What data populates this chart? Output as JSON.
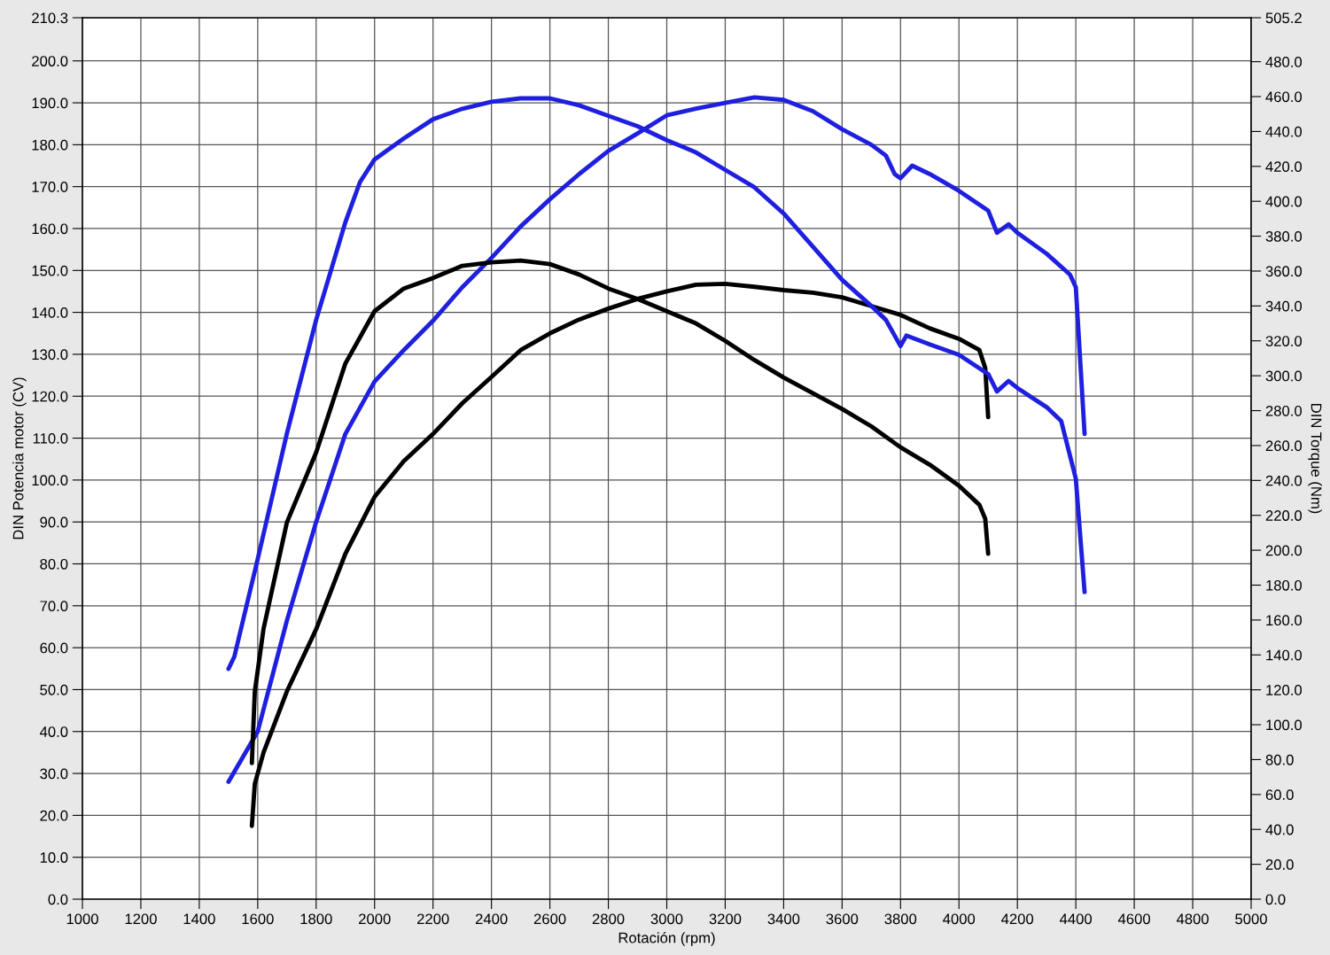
{
  "chart_data": {
    "type": "line",
    "xlabel": "Rotación (rpm)",
    "ylabel": "DIN Potencia motor (CV)",
    "y2label": "DIN Torque (Nm)",
    "xlim": [
      1000,
      5000
    ],
    "xticks": [
      1000,
      1200,
      1400,
      1600,
      1800,
      2000,
      2200,
      2400,
      2600,
      2800,
      3000,
      3200,
      3400,
      3600,
      3800,
      4000,
      4200,
      4400,
      4600,
      4800,
      5000
    ],
    "ylim": [
      0,
      210.3
    ],
    "yticks": [
      {
        "value": 0,
        "label": "0.0"
      },
      {
        "value": 10,
        "label": "10.0"
      },
      {
        "value": 20,
        "label": "20.0"
      },
      {
        "value": 30,
        "label": "30.0"
      },
      {
        "value": 40,
        "label": "40.0"
      },
      {
        "value": 50,
        "label": "50.0"
      },
      {
        "value": 60,
        "label": "60.0"
      },
      {
        "value": 70,
        "label": "70.0"
      },
      {
        "value": 80,
        "label": "80.0"
      },
      {
        "value": 90,
        "label": "90.0"
      },
      {
        "value": 100,
        "label": "100.0"
      },
      {
        "value": 110,
        "label": "110.0"
      },
      {
        "value": 120,
        "label": "120.0"
      },
      {
        "value": 130,
        "label": "130.0"
      },
      {
        "value": 140,
        "label": "140.0"
      },
      {
        "value": 150,
        "label": "150.0"
      },
      {
        "value": 160,
        "label": "160.0"
      },
      {
        "value": 170,
        "label": "170.0"
      },
      {
        "value": 180,
        "label": "180.0"
      },
      {
        "value": 190,
        "label": "190.0"
      },
      {
        "value": 200,
        "label": "200.0"
      },
      210.3
    ],
    "y2lim": [
      0,
      505.2
    ],
    "y2ticks": [
      {
        "value": 0,
        "label": "0.0"
      },
      {
        "value": 20,
        "label": "20.0"
      },
      {
        "value": 40,
        "label": "40.0"
      },
      {
        "value": 60,
        "label": "60.0"
      },
      {
        "value": 80,
        "label": "80.0"
      },
      {
        "value": 100,
        "label": "100.0"
      },
      {
        "value": 120,
        "label": "120.0"
      },
      {
        "value": 140,
        "label": "140.0"
      },
      {
        "value": 160,
        "label": "160.0"
      },
      {
        "value": 180,
        "label": "180.0"
      },
      {
        "value": 200,
        "label": "200.0"
      },
      {
        "value": 220,
        "label": "220.0"
      },
      {
        "value": 240,
        "label": "240.0"
      },
      {
        "value": 260,
        "label": "260.0"
      },
      {
        "value": 280,
        "label": "280.0"
      },
      {
        "value": 300,
        "label": "300.0"
      },
      {
        "value": 320,
        "label": "320.0"
      },
      {
        "value": 340,
        "label": "340.0"
      },
      {
        "value": 360,
        "label": "360.0"
      },
      {
        "value": 380,
        "label": "380.0"
      },
      {
        "value": 400,
        "label": "400.0"
      },
      {
        "value": 420,
        "label": "420.0"
      },
      {
        "value": 440,
        "label": "440.0"
      },
      {
        "value": 460,
        "label": "460.0"
      },
      {
        "value": 480,
        "label": "480.0"
      },
      505.2
    ],
    "grid": true,
    "legend": false,
    "marker": "none",
    "line_style": "solid",
    "series": [
      {
        "color": "#1f1fdf",
        "axis": "y",
        "x": [
          1500,
          1600,
          1700,
          1800,
          1900,
          2000,
          2100,
          2200,
          2300,
          2400,
          2500,
          2600,
          2700,
          2800,
          2900,
          3000,
          3100,
          3200,
          3300,
          3400,
          3500,
          3600,
          3700,
          3750,
          3780,
          3800,
          3840,
          3900,
          4000,
          4100,
          4130,
          4170,
          4200,
          4300,
          4380,
          4400,
          4430
        ],
        "values": [
          28,
          40,
          66.5,
          90,
          111,
          123.5,
          131,
          138,
          146,
          153,
          160.5,
          167,
          173,
          178.5,
          182.7,
          187,
          188.6,
          190,
          191.3,
          190.7,
          188,
          183.7,
          180,
          177.4,
          173,
          172,
          175,
          173,
          169,
          164.3,
          159,
          161,
          159,
          154,
          149,
          146,
          111
        ]
      },
      {
        "color": "#1f1fdf",
        "axis": "y2",
        "x": [
          1500,
          1520,
          1600,
          1700,
          1800,
          1900,
          1950,
          2000,
          2100,
          2200,
          2300,
          2400,
          2500,
          2600,
          2700,
          2800,
          2900,
          3000,
          3100,
          3200,
          3300,
          3400,
          3500,
          3600,
          3700,
          3750,
          3800,
          3820,
          3900,
          4000,
          4100,
          4130,
          4170,
          4200,
          4300,
          4350,
          4400,
          4430
        ],
        "values": [
          132,
          139,
          195,
          267,
          332,
          388,
          411,
          424,
          436,
          447,
          453,
          457,
          459,
          459,
          455,
          449,
          443,
          435,
          428,
          418,
          408,
          393,
          374,
          355,
          340,
          332,
          317,
          323,
          318,
          312,
          301,
          291,
          297,
          293,
          282,
          274,
          241,
          176
        ]
      },
      {
        "color": "#000000",
        "axis": "y",
        "x": [
          1580,
          1590,
          1620,
          1700,
          1800,
          1900,
          2000,
          2100,
          2200,
          2300,
          2400,
          2500,
          2600,
          2700,
          2800,
          2900,
          3000,
          3100,
          3200,
          3300,
          3400,
          3500,
          3600,
          3700,
          3800,
          3900,
          4000,
          4070,
          4090,
          4100
        ],
        "values": [
          17.5,
          27.5,
          35,
          49.6,
          64.4,
          82.4,
          96,
          104.5,
          111,
          118.3,
          124.6,
          131,
          135,
          138.3,
          140.9,
          143.2,
          145,
          146.6,
          146.8,
          146.1,
          145.3,
          144.7,
          143.6,
          141.5,
          139.4,
          136.2,
          133.7,
          131,
          126.7,
          115
        ]
      },
      {
        "color": "#000000",
        "axis": "y2",
        "x": [
          1580,
          1590,
          1620,
          1700,
          1800,
          1900,
          2000,
          2100,
          2200,
          2300,
          2400,
          2500,
          2600,
          2700,
          2800,
          2900,
          3000,
          3100,
          3200,
          3300,
          3400,
          3500,
          3600,
          3700,
          3800,
          3900,
          4000,
          4070,
          4090,
          4100
        ],
        "values": [
          78,
          119,
          155,
          216,
          256,
          307,
          337,
          350,
          356,
          363,
          365,
          366,
          364,
          358,
          350,
          344,
          337,
          330,
          320,
          309,
          299,
          290,
          281,
          271,
          259,
          249,
          237,
          226,
          218,
          198
        ]
      }
    ]
  }
}
